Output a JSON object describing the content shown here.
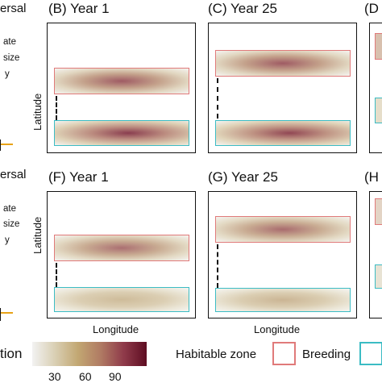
{
  "left_cut": {
    "top_lines": [
      "ersal",
      "ate",
      "size",
      "y"
    ],
    "bottom_lines": [
      "ersal",
      "ate",
      "size",
      "y"
    ]
  },
  "panels": [
    {
      "id": "B",
      "label": "(B) Year 1"
    },
    {
      "id": "C",
      "label": "(C) Year 25"
    },
    {
      "id": "D",
      "label": "(D"
    },
    {
      "id": "F",
      "label": "(F) Year 1"
    },
    {
      "id": "G",
      "label": "(G) Year 25"
    },
    {
      "id": "H",
      "label": "(H"
    }
  ],
  "axes": {
    "y_label": "Latitude",
    "x_label": "Longitude"
  },
  "colorbar": {
    "title_fragment": "tion",
    "ticks": [
      "30",
      "60",
      "90"
    ],
    "colors": [
      "#f2f2f2",
      "#d9cfb3",
      "#c2a772",
      "#b07a63",
      "#8f3a4a",
      "#5e0d22"
    ]
  },
  "legend": {
    "title": "Habitable zone",
    "breeding_label": "Breeding",
    "breeding_color": "#e07a7a",
    "nonbreeding_color": "#3bbcc4"
  }
}
